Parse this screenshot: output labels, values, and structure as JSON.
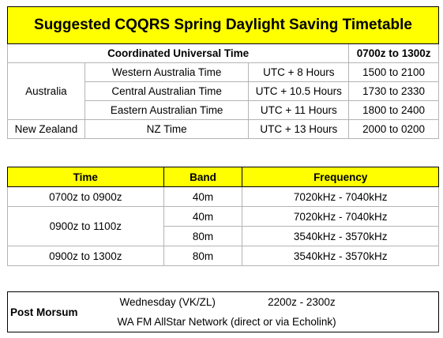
{
  "title": "Suggested CQQRS Spring Daylight Saving Timetable",
  "utc_table": {
    "header": "Coordinated Universal Time",
    "header_range": "0700z to 1300z",
    "regions": [
      {
        "country": "Australia",
        "zone": "Western Australia Time",
        "offset": "UTC + 8 Hours",
        "local": "1500 to 2100"
      },
      {
        "country": "",
        "zone": "Central Australian Time",
        "offset": "UTC + 10.5 Hours",
        "local": "1730 to 2330"
      },
      {
        "country": "",
        "zone": "Eastern Australian Time",
        "offset": "UTC + 11 Hours",
        "local": "1800 to 2400"
      },
      {
        "country": "New Zealand",
        "zone": "NZ Time",
        "offset": "UTC + 13 Hours",
        "local": "2000 to 0200"
      }
    ]
  },
  "bands_table": {
    "headers": {
      "time": "Time",
      "band": "Band",
      "frequency": "Frequency"
    },
    "rows": [
      {
        "time": "0700z to 0900z",
        "band": "40m",
        "frequency": "7020kHz - 7040kHz"
      },
      {
        "time": "0900z to 1100z",
        "band": "40m",
        "frequency": "7020kHz - 7040kHz"
      },
      {
        "time": "",
        "band": "80m",
        "frequency": "3540kHz - 3570kHz"
      },
      {
        "time": "0900z to 1300z",
        "band": "80m",
        "frequency": "3540kHz - 3570kHz"
      }
    ]
  },
  "post_morsum": {
    "label": "Post Morsum",
    "day": "Wednesday (VK/ZL)",
    "time": "2200z - 2300z",
    "network": "WA FM AllStar Network (direct or via Echolink)"
  },
  "colors": {
    "highlight": "#ffff00",
    "border": "#b4b4b4"
  }
}
